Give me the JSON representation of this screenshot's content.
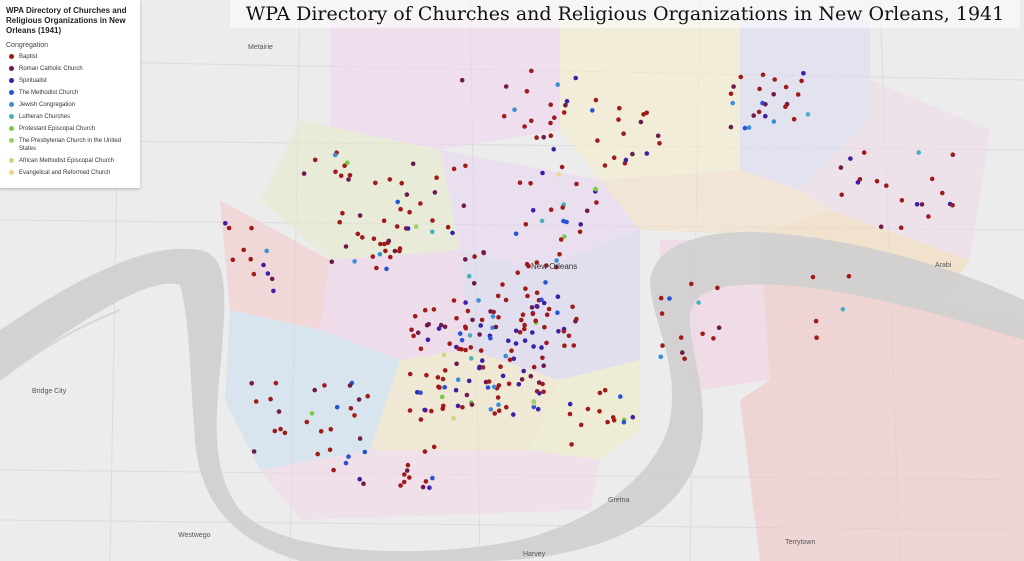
{
  "title": "WPA Directory of Churches and Religious Organizations in New Orleans, 1941",
  "legend": {
    "heading": "WPA Directory of Churches and Religious Organizations in New Orleans (1941)",
    "subheading": "Congregation",
    "items": [
      {
        "label": "Baptist",
        "color": "#a11a1a"
      },
      {
        "label": "Roman Catholic Church",
        "color": "#6e1a4c"
      },
      {
        "label": "Spiritualist",
        "color": "#3a1fa8"
      },
      {
        "label": "The Methodist Church",
        "color": "#2554d8"
      },
      {
        "label": "Jewish Congregation",
        "color": "#3a8fd6"
      },
      {
        "label": "Lutheran Churches",
        "color": "#46b0bf"
      },
      {
        "label": "Protestant Episcopal Church",
        "color": "#7ac943"
      },
      {
        "label": "The Presbyterian Church in the United States",
        "color": "#9ed06a"
      },
      {
        "label": "African Methodist Episcopal Church",
        "color": "#c9d97a"
      },
      {
        "label": "Evangelical and Reformed Church",
        "color": "#f2d48a"
      }
    ]
  },
  "places": {
    "metairie": "Metairie",
    "new_orleans": "New Orleans",
    "bridge_city": "Bridge City",
    "westwego": "Westwego",
    "gretna": "Gretna",
    "harvey": "Harvey",
    "terrytown": "Terrytown",
    "arabi": "Arabi"
  }
}
